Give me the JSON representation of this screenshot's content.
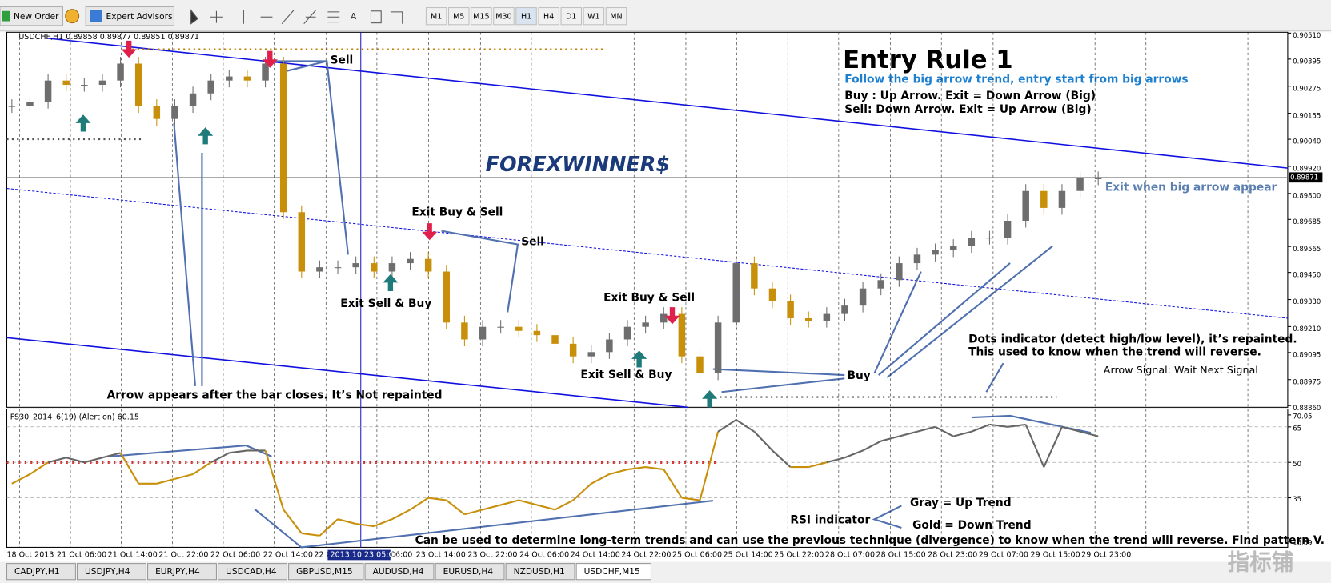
{
  "toolbar": {
    "new_order": "New Order",
    "expert_advisors": "Expert Advisors",
    "timeframes": [
      "M1",
      "M5",
      "M15",
      "M30",
      "H1",
      "H4",
      "D1",
      "W1",
      "MN"
    ]
  },
  "chart": {
    "header": "USDCHF,H1  0.89858 0.89877 0.89851 0.89871",
    "logo": "FOREXWINNER$",
    "title": "Entry Rule 1",
    "subtitle": "Follow the big arrow trend, entry start from big arrows",
    "rules": [
      "Buy : Up Arrow. Exit = Down Arrow (Big)",
      "Sell: Down Arrow. Exit = Up Arrow (Big)"
    ],
    "annotations": [
      "Sell",
      "Exit Buy & Sell",
      "Sell",
      "Exit Sell & Buy",
      "Exit Buy & Sell",
      "Exit Sell & Buy",
      "Buy",
      "Arrow appears after the bar closes. It’s Not repainted",
      "Dots indicator (detect high/low level), it’s repainted.",
      "This used to know when the trend will reverse.",
      "Arrow Signal: Wait Next Signal",
      "Exit when big arrow appear"
    ],
    "ylim": [
      0.8886,
      0.9051
    ],
    "yticks": [
      {
        "value": 0.9051,
        "label": "0.90510"
      },
      {
        "value": 0.90395,
        "label": "0.90395"
      },
      {
        "value": 0.90275,
        "label": "0.90275"
      },
      {
        "value": 0.90155,
        "label": "0.90155"
      },
      {
        "value": 0.9004,
        "label": "0.90040"
      },
      {
        "value": 0.8992,
        "label": "0.89920"
      },
      {
        "value": 0.898,
        "label": "0.89800"
      },
      {
        "value": 0.89685,
        "label": "0.89685"
      },
      {
        "value": 0.89565,
        "label": "0.89565"
      },
      {
        "value": 0.8945,
        "label": "0.89450"
      },
      {
        "value": 0.8933,
        "label": "0.89330"
      },
      {
        "value": 0.8921,
        "label": "0.89210"
      },
      {
        "value": 0.89095,
        "label": "0.89095"
      },
      {
        "value": 0.88975,
        "label": "0.88975"
      },
      {
        "value": 0.8886,
        "label": "0.88860"
      }
    ],
    "current": {
      "value": 0.89871,
      "label": "0.89871"
    },
    "closes": [
      0.90187,
      0.90206,
      0.903,
      0.90281,
      0.90281,
      0.903,
      0.90375,
      0.90187,
      0.9013,
      0.90187,
      0.90243,
      0.903,
      0.90318,
      0.903,
      0.90375,
      0.89717,
      0.89454,
      0.89473,
      0.89473,
      0.89491,
      0.89454,
      0.89491,
      0.8951,
      0.89454,
      0.89228,
      0.89153,
      0.89209,
      0.89209,
      0.89191,
      0.89172,
      0.89134,
      0.89078,
      0.89097,
      0.89153,
      0.89209,
      0.89228,
      0.89266,
      0.89078,
      0.89003,
      0.89228,
      0.89491,
      0.89379,
      0.89322,
      0.89247,
      0.89236,
      0.89266,
      0.89303,
      0.89379,
      0.89416,
      0.89491,
      0.89529,
      0.89548,
      0.89567,
      0.89604,
      0.89604,
      0.89679,
      0.89811,
      0.89736,
      0.89811,
      0.89867,
      0.89867
    ],
    "time_labels": [
      "18 Oct 2013",
      "21 Oct 06:00",
      "21 Oct 14:00",
      "21 Oct 22:00",
      "22 Oct 06:00",
      "22 Oct 14:00",
      "22 O",
      "06:00",
      "23 Oct 14:00",
      "23 Oct 22:00",
      "24 Oct 06:00",
      "24 Oct 14:00",
      "24 Oct 22:00",
      "25 Oct 06:00",
      "25 Oct 14:00",
      "25 Oct 22:00",
      "28 Oct 07:00",
      "28 Oct 15:00",
      "28 Oct 23:00",
      "29 Oct 07:00",
      "29 Oct 15:00",
      "29 Oct 23:00"
    ],
    "cursor_time": "2013.10.23 05:00"
  },
  "indicator": {
    "header": "FS30_2014_6(19) (Alert on) 60.15",
    "ylim": [
      16.59,
      70.05
    ],
    "yticks": [
      70.05,
      65,
      50,
      35,
      16.59
    ],
    "values": [
      41,
      45,
      50,
      52,
      50,
      52,
      54,
      41,
      41,
      43,
      45,
      50,
      54,
      55,
      55,
      30,
      20,
      19,
      26,
      24,
      23,
      26,
      30,
      35,
      34,
      28,
      30,
      32,
      34,
      32,
      30,
      34,
      41,
      45,
      47,
      48,
      47,
      35,
      34,
      63,
      68,
      63,
      55,
      48,
      48,
      50,
      52,
      55,
      59,
      61,
      63,
      65,
      61,
      63,
      66,
      65,
      66,
      48,
      65,
      63,
      61
    ],
    "notes": [
      "Gray = Up Trend",
      "RSI indicator",
      "Gold = Down Trend",
      "Can be used to determine long-term trends and can use the previous technique (divergence) to know when the trend will reverse. Find pattern V."
    ]
  },
  "tabs": [
    "CADJPY,H1",
    "USDJPY,H4",
    "EURJPY,H4",
    "USDCAD,H4",
    "GBPUSD,M15",
    "AUDUSD,H4",
    "EURUSD,H4",
    "NZDUSD,H1",
    "USDCHF,M15"
  ],
  "watermark": "指标铺"
}
